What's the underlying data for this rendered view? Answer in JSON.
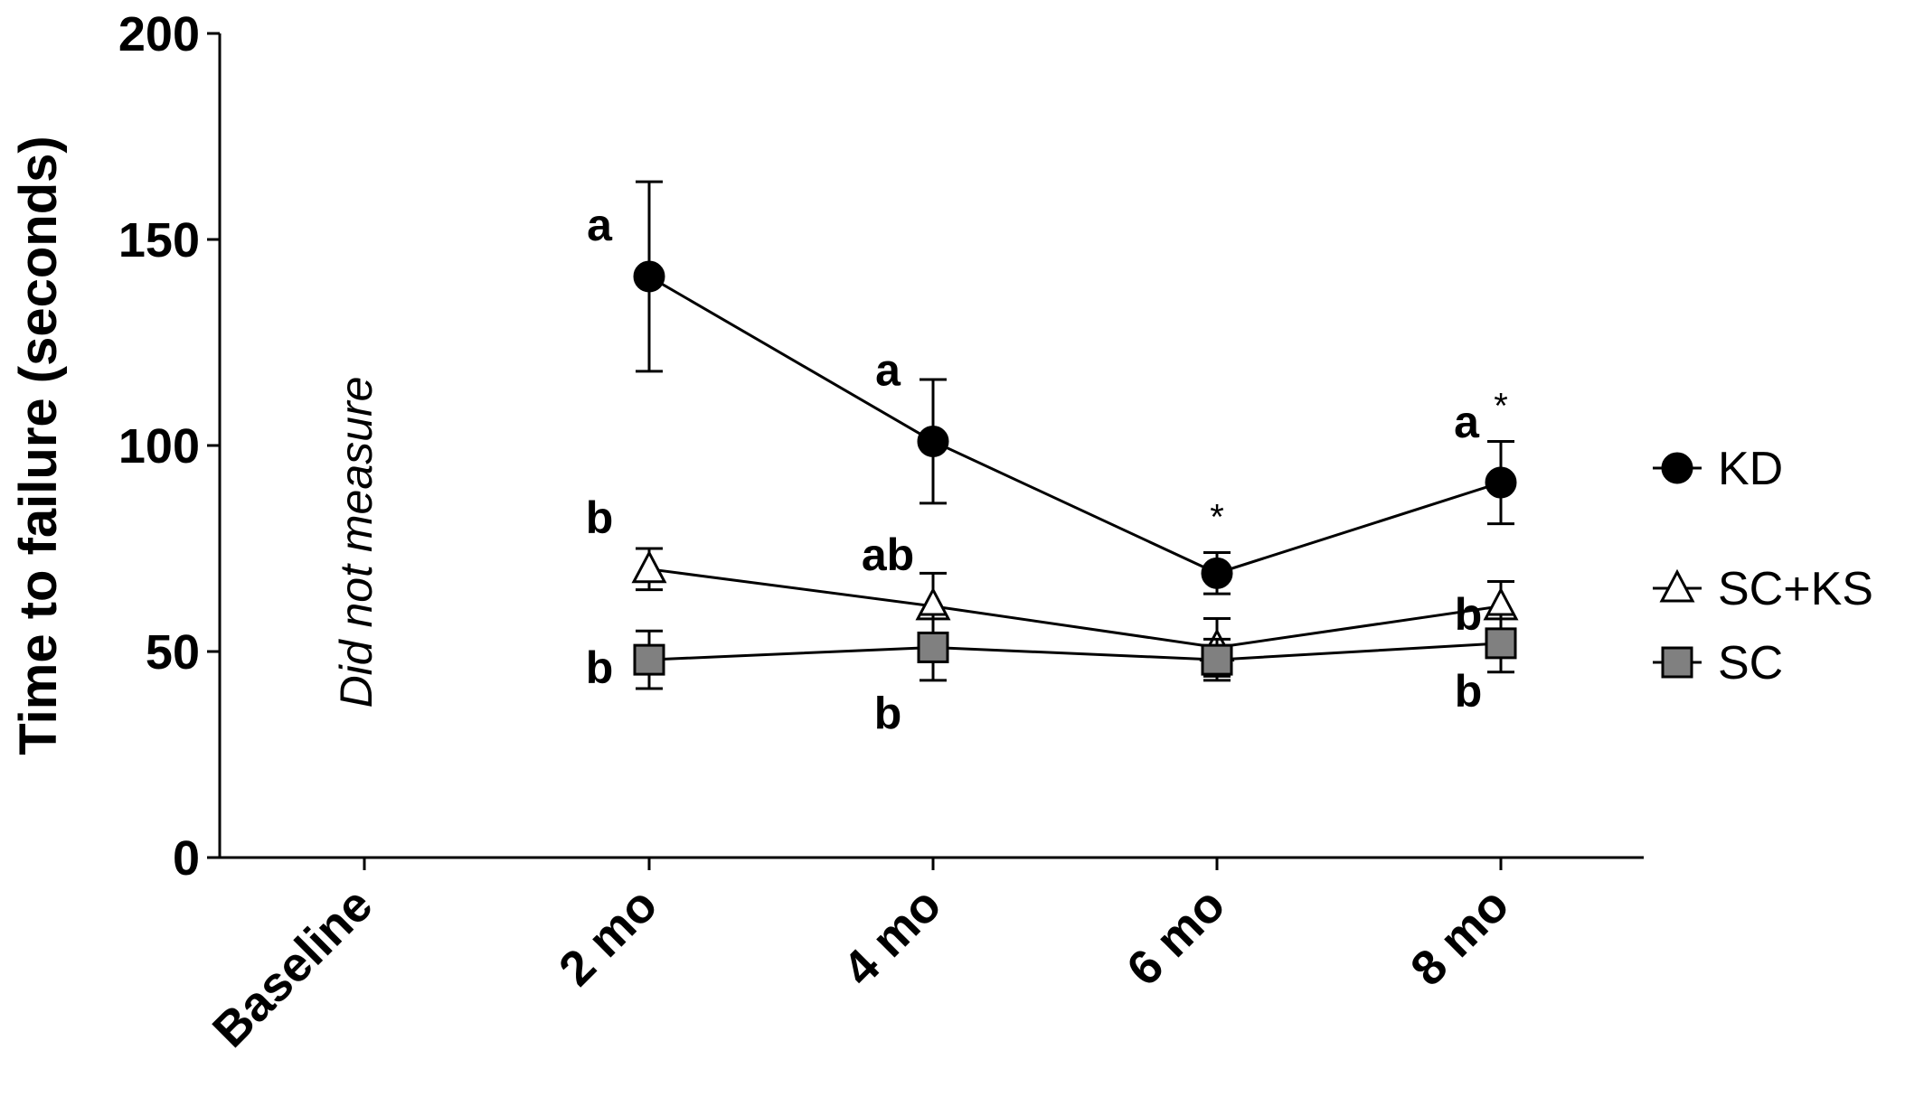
{
  "chart_data": {
    "type": "line",
    "categories": [
      "Baseline",
      "2 mo",
      "4 mo",
      "6 mo",
      "8 mo"
    ],
    "ylabel": "Time to failure (seconds)",
    "ylim": [
      0,
      200
    ],
    "yticks": [
      0,
      50,
      100,
      150,
      200
    ],
    "legend_position": "right",
    "grid": false,
    "series": [
      {
        "name": "KD",
        "marker": "circle",
        "fill": "#000000",
        "values": [
          null,
          141,
          101,
          69,
          91
        ],
        "err": [
          null,
          23,
          15,
          5,
          10
        ],
        "labels": [
          "",
          "a",
          "a",
          "",
          "a"
        ]
      },
      {
        "name": "SC+KS",
        "marker": "triangle",
        "fill": "#ffffff",
        "values": [
          null,
          70,
          61,
          51,
          61
        ],
        "err": [
          null,
          5,
          8,
          7,
          6
        ],
        "labels": [
          "",
          "b",
          "ab",
          "",
          "b"
        ]
      },
      {
        "name": "SC",
        "marker": "square",
        "fill": "#808080",
        "values": [
          null,
          48,
          51,
          48,
          52
        ],
        "err": [
          null,
          7,
          8,
          5,
          7
        ],
        "labels": [
          "",
          "b",
          "b",
          "",
          "b"
        ]
      }
    ],
    "significance": [
      {
        "category": "6 mo",
        "text": "*"
      },
      {
        "category": "8 mo",
        "text": "*"
      }
    ],
    "annotations": [
      {
        "category": "Baseline",
        "text": "Did not measure"
      }
    ]
  }
}
